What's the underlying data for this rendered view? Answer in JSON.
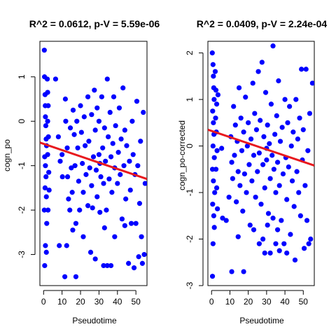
{
  "chart_data": [
    {
      "type": "scatter",
      "title": "R^2 = 0.0612, p-V = 5.59e-06",
      "xlabel": "Pseudotime",
      "ylabel": "cogn_po",
      "xlim": [
        -2,
        56
      ],
      "ylim": [
        -3.7,
        1.8
      ],
      "xticks": [
        0,
        10,
        20,
        30,
        40,
        50
      ],
      "yticks": [
        -3,
        -2,
        -1,
        0,
        1
      ],
      "grid": false,
      "point_color": "#0000FF",
      "fit_color": "#E8191E",
      "fit_line": {
        "x": [
          -2,
          56
        ],
        "y": [
          -0.48,
          -1.3
        ]
      },
      "points": [
        [
          0.4,
          1.6
        ],
        [
          0.5,
          1.0
        ],
        [
          0.8,
          0.6
        ],
        [
          0.9,
          0.35
        ],
        [
          1.0,
          0.1
        ],
        [
          1.2,
          -0.1
        ],
        [
          1.4,
          -0.4
        ],
        [
          1.6,
          -0.55
        ],
        [
          0.6,
          -0.8
        ],
        [
          1.0,
          -1.0
        ],
        [
          1.3,
          -1.25
        ],
        [
          0.8,
          -1.5
        ],
        [
          1.5,
          -1.7
        ],
        [
          0.4,
          -2.0
        ],
        [
          1.7,
          -2.3
        ],
        [
          1.0,
          -2.8
        ],
        [
          1.5,
          -2.95
        ],
        [
          0.6,
          -3.25
        ],
        [
          2.0,
          0.95
        ],
        [
          2.2,
          0.65
        ],
        [
          2.5,
          0.35
        ],
        [
          2.2,
          0.0
        ],
        [
          2.6,
          -0.35
        ],
        [
          2.2,
          -0.75
        ],
        [
          2.8,
          -1.15
        ],
        [
          3.0,
          -1.55
        ],
        [
          2.4,
          -2.0
        ],
        [
          6.5,
          0.95
        ],
        [
          8.0,
          -0.35
        ],
        [
          9.0,
          -0.9
        ],
        [
          10.0,
          -0.75
        ],
        [
          10.2,
          -1.25
        ],
        [
          11.8,
          0.5
        ],
        [
          12.0,
          0.0
        ],
        [
          12.8,
          -0.6
        ],
        [
          13.0,
          -1.25
        ],
        [
          13.5,
          -1.75
        ],
        [
          14.2,
          -2.0
        ],
        [
          14.5,
          -0.15
        ],
        [
          15.0,
          -1.05
        ],
        [
          15.5,
          -1.6
        ],
        [
          16.0,
          0.25
        ],
        [
          16.6,
          -0.3
        ],
        [
          17.0,
          -1.0
        ],
        [
          18.0,
          0.0
        ],
        [
          18.5,
          -0.6
        ],
        [
          19.0,
          -1.35
        ],
        [
          19.5,
          -2.0
        ],
        [
          20.0,
          0.35
        ],
        [
          20.5,
          -0.25
        ],
        [
          21.0,
          -0.95
        ],
        [
          21.5,
          -1.6
        ],
        [
          22.0,
          0.1
        ],
        [
          22.5,
          -0.55
        ],
        [
          23.0,
          -1.2
        ],
        [
          24.0,
          -1.9
        ],
        [
          24.0,
          0.55
        ],
        [
          24.5,
          -0.45
        ],
        [
          25.0,
          -1.05
        ],
        [
          26.0,
          -1.45
        ],
        [
          26.0,
          0.15
        ],
        [
          27.0,
          -0.8
        ],
        [
          27.5,
          0.7
        ],
        [
          28.0,
          -0.2
        ],
        [
          28.5,
          -1.1
        ],
        [
          29.0,
          -1.7
        ],
        [
          29.0,
          0.3
        ],
        [
          30.0,
          -0.75
        ],
        [
          30.0,
          0.0
        ],
        [
          30.5,
          -0.95
        ],
        [
          31.0,
          -1.25
        ],
        [
          31.5,
          0.55
        ],
        [
          32.0,
          -0.6
        ],
        [
          32.5,
          -1.4
        ],
        [
          33.0,
          -0.15
        ],
        [
          33.5,
          -0.9
        ],
        [
          34.0,
          -2.0
        ],
        [
          34.5,
          0.95
        ],
        [
          35.0,
          -0.35
        ],
        [
          35.5,
          -1.3
        ],
        [
          36.0,
          0.2
        ],
        [
          36.5,
          -0.8
        ],
        [
          37.0,
          -1.6
        ],
        [
          37.5,
          -0.5
        ],
        [
          38.0,
          0.55
        ],
        [
          38.5,
          -1.05
        ],
        [
          39.0,
          -0.1
        ],
        [
          40.0,
          -1.4
        ],
        [
          40.5,
          -0.7
        ],
        [
          41.0,
          0.3
        ],
        [
          41.5,
          -1.2
        ],
        [
          42.0,
          -0.4
        ],
        [
          42.5,
          -2.2
        ],
        [
          43.0,
          0.75
        ],
        [
          43.5,
          -1.0
        ],
        [
          44.0,
          -0.2
        ],
        [
          44.5,
          -1.75
        ],
        [
          45.0,
          -0.55
        ],
        [
          46.0,
          -3.2
        ],
        [
          46.5,
          -0.9
        ],
        [
          47.0,
          -1.55
        ],
        [
          47.5,
          -2.3
        ],
        [
          48.0,
          0.0
        ],
        [
          48.5,
          -0.75
        ],
        [
          49.0,
          -3.3
        ],
        [
          49.5,
          -1.2
        ],
        [
          50.0,
          -2.3
        ],
        [
          50.5,
          0.45
        ],
        [
          51.0,
          -1.0
        ],
        [
          51.5,
          -3.05
        ],
        [
          52.0,
          -1.85
        ],
        [
          52.5,
          -0.45
        ],
        [
          53.0,
          -2.6
        ],
        [
          53.5,
          -3.2
        ],
        [
          54.0,
          0.2
        ],
        [
          54.5,
          -3.0
        ],
        [
          55.0,
          -1.4
        ],
        [
          8.5,
          -2.8
        ],
        [
          12.5,
          -2.8
        ],
        [
          15.8,
          -2.45
        ],
        [
          17.5,
          -2.3
        ],
        [
          21.5,
          -2.6
        ],
        [
          25.5,
          -2.95
        ],
        [
          28.0,
          -3.1
        ],
        [
          32.5,
          -3.25
        ],
        [
          34.5,
          -3.25
        ],
        [
          36.5,
          -3.25
        ],
        [
          11.5,
          -3.5
        ],
        [
          17.5,
          -3.5
        ],
        [
          26.5,
          -1.95
        ],
        [
          30.5,
          -2.05
        ],
        [
          33.0,
          -2.4
        ],
        [
          38.5,
          -2.6
        ],
        [
          44.0,
          -2.35
        ]
      ]
    },
    {
      "type": "scatter",
      "title": "R^2 = 0.0409, p-V = 2.24e-04",
      "xlabel": "Pseudotime",
      "ylabel": "cogn_po-corrected",
      "xlim": [
        -2,
        56
      ],
      "ylim": [
        -3.0,
        2.25
      ],
      "xticks": [
        0,
        10,
        20,
        30,
        40,
        50
      ],
      "yticks": [
        -3,
        -2,
        -1,
        0,
        1,
        2
      ],
      "grid": false,
      "point_color": "#0000FF",
      "fit_color": "#E8191E",
      "fit_line": {
        "x": [
          -2,
          56
        ],
        "y": [
          0.35,
          -0.42
        ]
      },
      "points": [
        [
          0.4,
          2.0
        ],
        [
          0.8,
          1.75
        ],
        [
          1.0,
          1.5
        ],
        [
          1.2,
          1.25
        ],
        [
          1.4,
          1.0
        ],
        [
          0.6,
          0.75
        ],
        [
          1.0,
          0.5
        ],
        [
          1.3,
          0.25
        ],
        [
          0.8,
          0.0
        ],
        [
          1.5,
          -0.25
        ],
        [
          0.5,
          -0.5
        ],
        [
          1.0,
          -0.75
        ],
        [
          1.7,
          -1.0
        ],
        [
          0.6,
          -1.25
        ],
        [
          1.2,
          -1.5
        ],
        [
          1.5,
          -1.75
        ],
        [
          0.8,
          -2.1
        ],
        [
          0.5,
          -2.8
        ],
        [
          2.0,
          1.6
        ],
        [
          2.4,
          1.2
        ],
        [
          2.8,
          0.9
        ],
        [
          2.2,
          0.6
        ],
        [
          2.6,
          0.3
        ],
        [
          3.0,
          -0.1
        ],
        [
          2.4,
          -0.5
        ],
        [
          2.8,
          -0.9
        ],
        [
          3.2,
          -1.35
        ],
        [
          3.5,
          1.1
        ],
        [
          5.5,
          -0.05
        ],
        [
          6.0,
          -1.55
        ],
        [
          8.0,
          -1.6
        ],
        [
          9.5,
          -1.1
        ],
        [
          10.5,
          0.2
        ],
        [
          11.0,
          -0.35
        ],
        [
          11.5,
          -0.7
        ],
        [
          12.0,
          0.85
        ],
        [
          12.5,
          -0.2
        ],
        [
          13.0,
          0.45
        ],
        [
          13.5,
          -1.2
        ],
        [
          14.0,
          0.1
        ],
        [
          14.5,
          -0.55
        ],
        [
          15.0,
          1.25
        ],
        [
          15.5,
          -0.85
        ],
        [
          16.0,
          0.6
        ],
        [
          16.5,
          -0.1
        ],
        [
          17.0,
          -1.4
        ],
        [
          17.5,
          0.3
        ],
        [
          18.0,
          -0.6
        ],
        [
          18.5,
          1.05
        ],
        [
          19.0,
          -1.0
        ],
        [
          19.5,
          0.0
        ],
        [
          20.0,
          0.5
        ],
        [
          20.5,
          -0.4
        ],
        [
          21.0,
          -1.7
        ],
        [
          21.5,
          0.15
        ],
        [
          22.0,
          -0.75
        ],
        [
          22.5,
          1.35
        ],
        [
          23.0,
          -0.2
        ],
        [
          23.5,
          0.7
        ],
        [
          24.0,
          -1.1
        ],
        [
          24.5,
          0.35
        ],
        [
          25.0,
          -0.55
        ],
        [
          25.5,
          1.6
        ],
        [
          26.0,
          -0.15
        ],
        [
          26.5,
          0.55
        ],
        [
          27.0,
          -1.25
        ],
        [
          27.5,
          1.8
        ],
        [
          28.0,
          -0.4
        ],
        [
          28.5,
          0.2
        ],
        [
          29.0,
          -0.9
        ],
        [
          29.5,
          1.15
        ],
        [
          30.0,
          -0.05
        ],
        [
          30.0,
          -0.3
        ],
        [
          30.5,
          0.45
        ],
        [
          31.0,
          -1.45
        ],
        [
          31.5,
          0.05
        ],
        [
          32.0,
          -0.7
        ],
        [
          32.5,
          0.9
        ],
        [
          33.0,
          -0.2
        ],
        [
          33.5,
          2.15
        ],
        [
          34.0,
          -0.5
        ],
        [
          34.5,
          0.25
        ],
        [
          35.0,
          -1.0
        ],
        [
          35.5,
          0.65
        ],
        [
          36.0,
          -0.35
        ],
        [
          36.5,
          1.4
        ],
        [
          37.0,
          -0.85
        ],
        [
          37.5,
          0.1
        ],
        [
          38.0,
          -1.6
        ],
        [
          38.5,
          0.4
        ],
        [
          39.0,
          -0.6
        ],
        [
          40.0,
          1.0
        ],
        [
          40.5,
          -0.25
        ],
        [
          41.0,
          -1.15
        ],
        [
          41.5,
          0.5
        ],
        [
          42.0,
          -0.45
        ],
        [
          42.5,
          0.85
        ],
        [
          43.0,
          -1.9
        ],
        [
          43.5,
          0.0
        ],
        [
          44.0,
          -0.75
        ],
        [
          44.5,
          0.3
        ],
        [
          45.0,
          -1.3
        ],
        [
          46.0,
          1.0
        ],
        [
          46.5,
          -0.55
        ],
        [
          47.0,
          0.15
        ],
        [
          47.5,
          -1.0
        ],
        [
          48.0,
          0.6
        ],
        [
          48.5,
          -1.5
        ],
        [
          49.0,
          1.65
        ],
        [
          49.5,
          -0.3
        ],
        [
          50.0,
          0.35
        ],
        [
          50.5,
          -2.2
        ],
        [
          51.0,
          -0.85
        ],
        [
          51.5,
          1.65
        ],
        [
          52.0,
          -1.6
        ],
        [
          52.5,
          -0.1
        ],
        [
          53.0,
          -2.1
        ],
        [
          53.5,
          0.7
        ],
        [
          54.0,
          -2.0
        ],
        [
          55.0,
          1.35
        ],
        [
          11.0,
          -2.7
        ],
        [
          14.5,
          -1.95
        ],
        [
          17.5,
          -2.7
        ],
        [
          23.0,
          -1.8
        ],
        [
          26.0,
          -2.1
        ],
        [
          29.0,
          -2.3
        ],
        [
          32.0,
          -2.3
        ],
        [
          35.0,
          -2.1
        ],
        [
          37.0,
          -2.25
        ],
        [
          39.5,
          -2.1
        ],
        [
          41.0,
          -2.3
        ],
        [
          45.5,
          -2.45
        ],
        [
          30.5,
          -1.7
        ],
        [
          33.5,
          -1.55
        ],
        [
          36.0,
          -1.8
        ],
        [
          28.0,
          -2.0
        ]
      ]
    }
  ]
}
